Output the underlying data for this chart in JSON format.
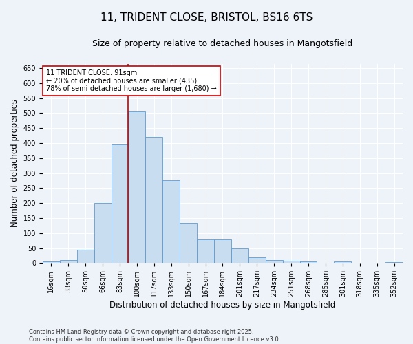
{
  "title_line1": "11, TRIDENT CLOSE, BRISTOL, BS16 6TS",
  "title_line2": "Size of property relative to detached houses in Mangotsfield",
  "xlabel": "Distribution of detached houses by size in Mangotsfield",
  "ylabel": "Number of detached properties",
  "categories": [
    "16sqm",
    "33sqm",
    "50sqm",
    "66sqm",
    "83sqm",
    "100sqm",
    "117sqm",
    "133sqm",
    "150sqm",
    "167sqm",
    "184sqm",
    "201sqm",
    "217sqm",
    "234sqm",
    "251sqm",
    "268sqm",
    "285sqm",
    "301sqm",
    "318sqm",
    "335sqm",
    "352sqm"
  ],
  "values": [
    5,
    10,
    45,
    200,
    395,
    505,
    420,
    275,
    135,
    78,
    78,
    50,
    20,
    10,
    8,
    6,
    0,
    5,
    0,
    0,
    2
  ],
  "bar_color": "#c9ddf0",
  "bar_edge_color": "#5b9bd5",
  "vline_color": "#cc0000",
  "vline_x": 4.5,
  "annotation_text": "11 TRIDENT CLOSE: 91sqm\n← 20% of detached houses are smaller (435)\n78% of semi-detached houses are larger (1,680) →",
  "annotation_box_color": "#ffffff",
  "annotation_box_edge_color": "#cc0000",
  "ylim": [
    0,
    665
  ],
  "yticks": [
    0,
    50,
    100,
    150,
    200,
    250,
    300,
    350,
    400,
    450,
    500,
    550,
    600,
    650
  ],
  "footer_line1": "Contains HM Land Registry data © Crown copyright and database right 2025.",
  "footer_line2": "Contains public sector information licensed under the Open Government Licence v3.0.",
  "bg_color": "#eef2f9",
  "grid_color": "#ffffff",
  "title_fontsize": 11,
  "subtitle_fontsize": 9,
  "tick_fontsize": 7,
  "label_fontsize": 8.5,
  "annot_fontsize": 7,
  "footer_fontsize": 6
}
